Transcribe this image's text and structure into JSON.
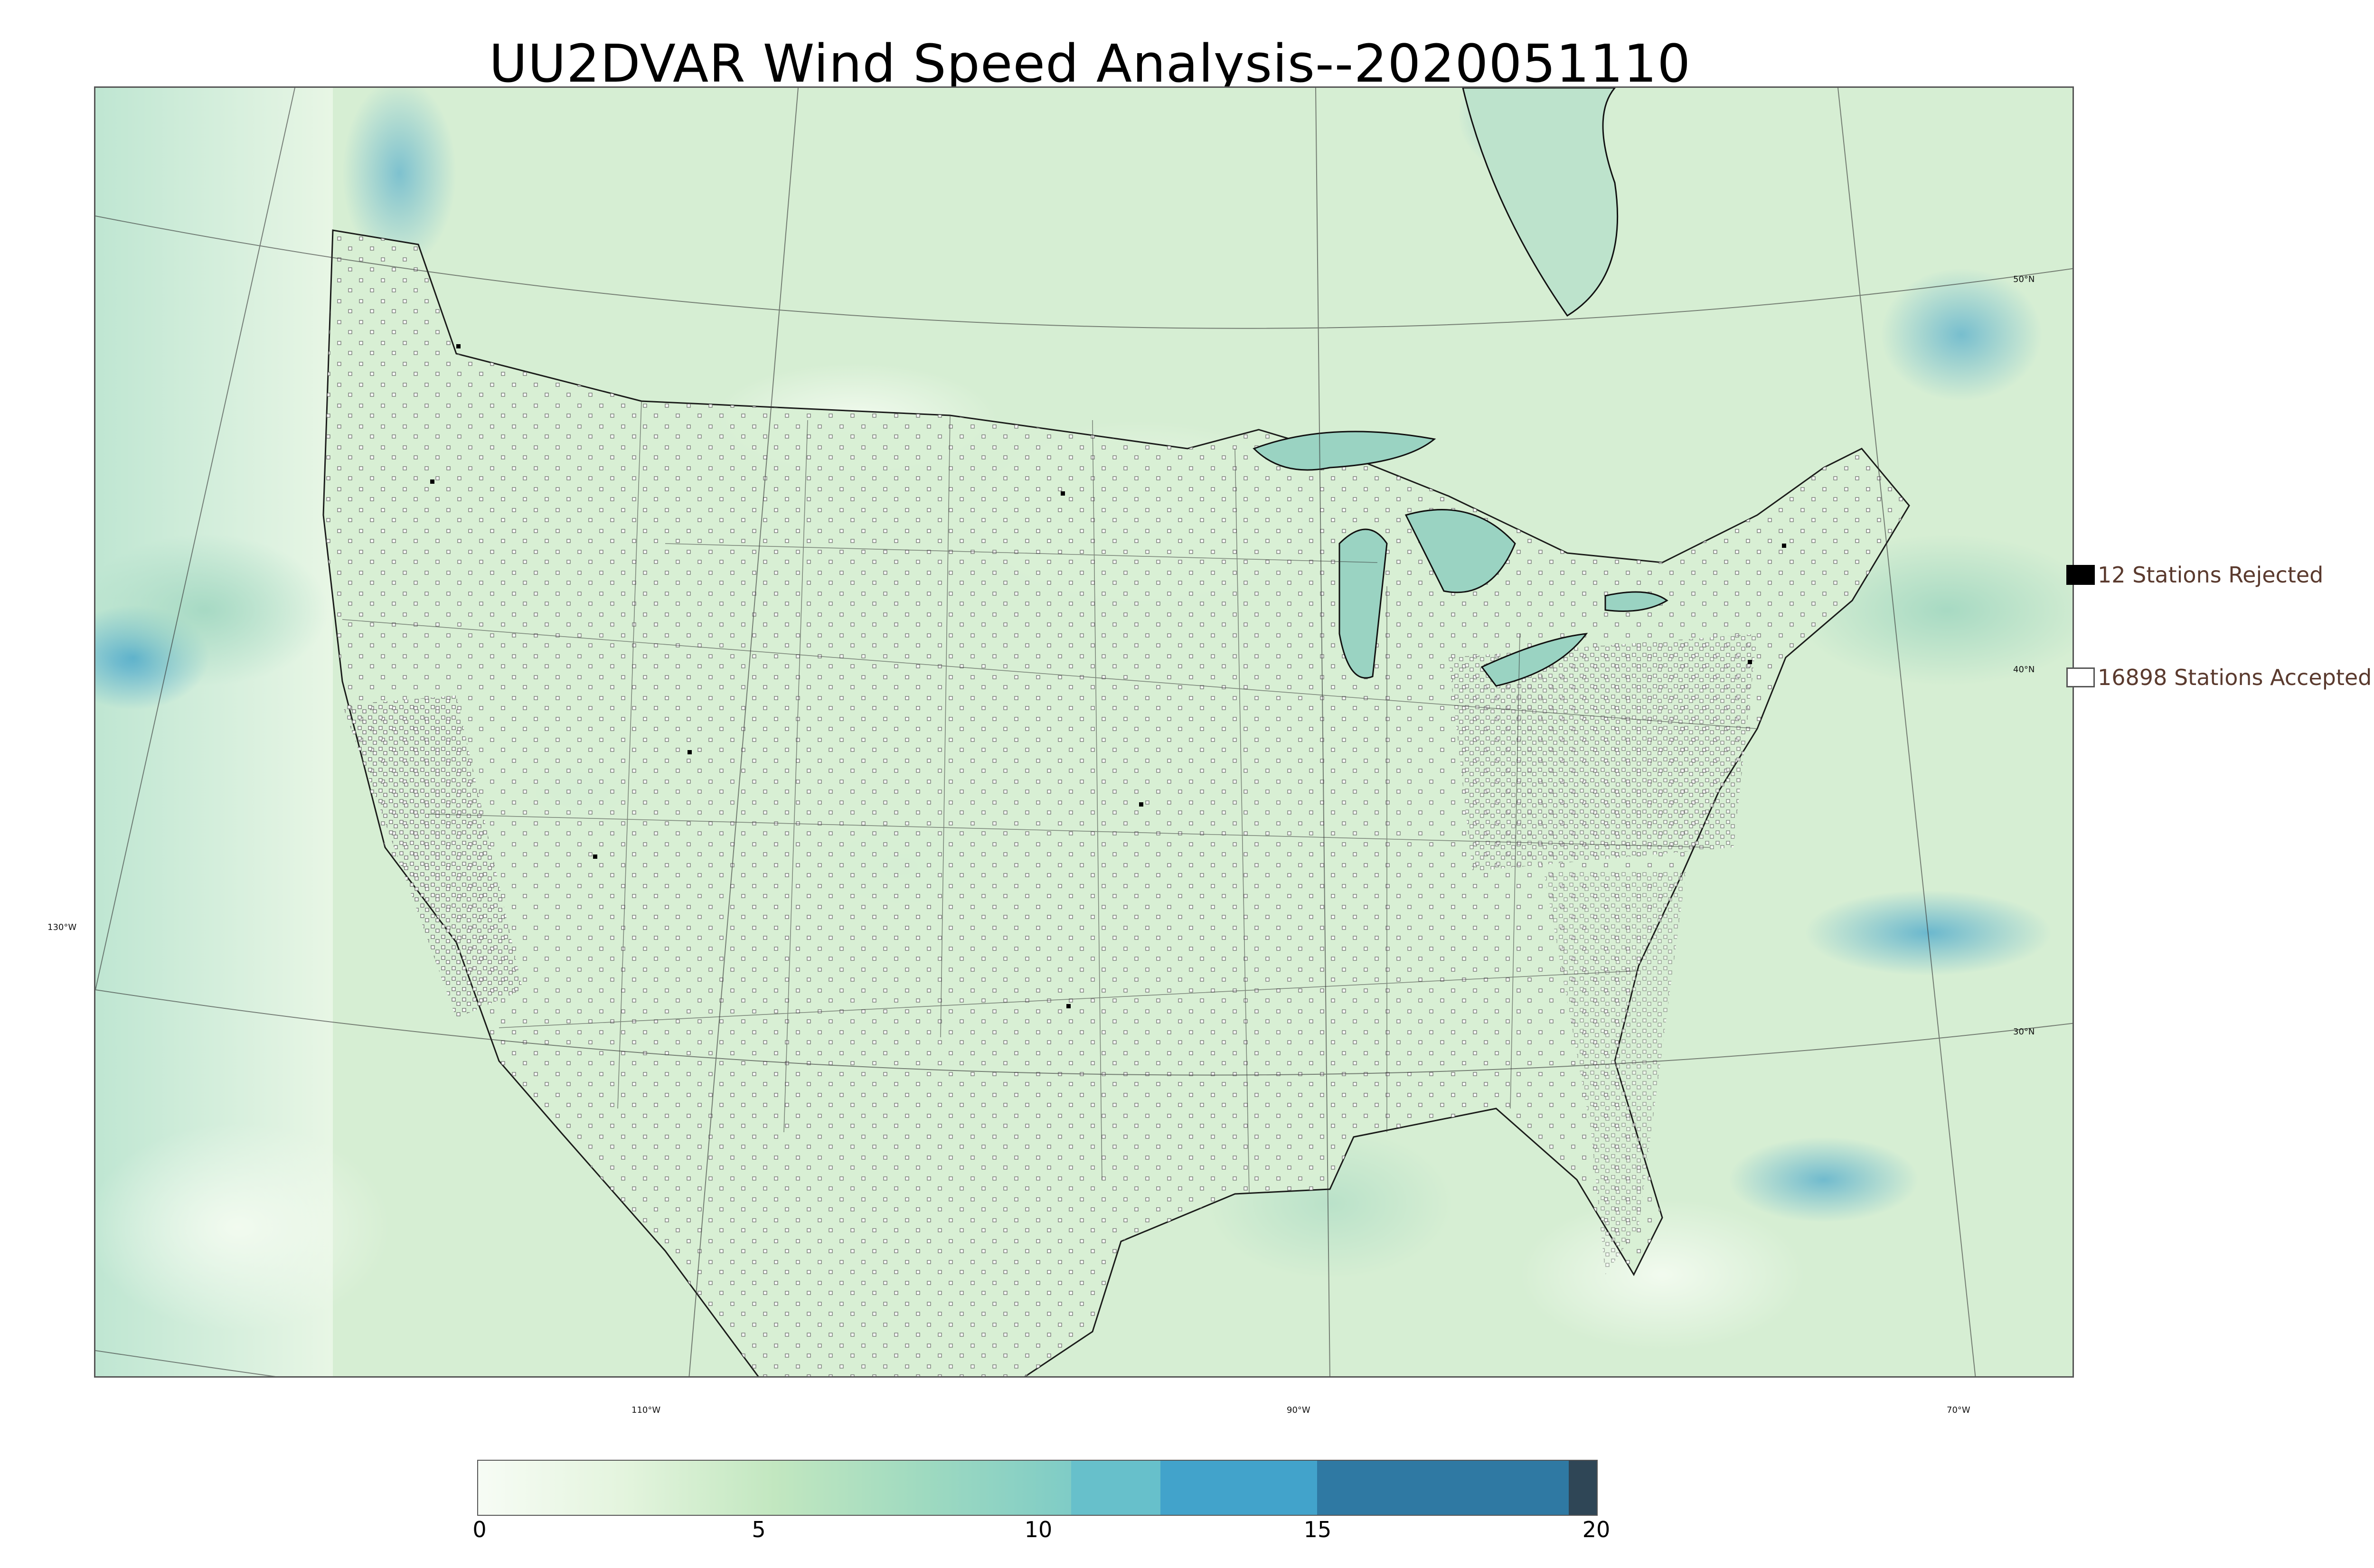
{
  "title": "UU2DVAR Wind Speed Analysis--2020051110",
  "legend": {
    "rejected_label": "12 Stations Rejected",
    "accepted_label": "16898 Stations Accepted"
  },
  "map": {
    "latitude_labels": [
      "50°N",
      "40°N",
      "30°N"
    ],
    "longitude_labels": [
      "130°W",
      "110°W",
      "90°W",
      "70°W"
    ],
    "colors": {
      "land_base": "#d8efd4",
      "ocean_base": "#cbe9cf",
      "high_wind": "#3fa0c8",
      "coastline": "#111111",
      "station_accepted": "#ffffff",
      "station_rejected": "#000000"
    }
  },
  "colorbar": {
    "ticks": [
      "0",
      "5",
      "10",
      "15",
      "20"
    ],
    "segments": [
      {
        "from": 0,
        "to": 10.6,
        "color": "gradient"
      },
      {
        "from": 10.6,
        "to": 12.2,
        "color": "#67c0cb"
      },
      {
        "from": 12.2,
        "to": 15.0,
        "color": "#42a3cb"
      },
      {
        "from": 15.0,
        "to": 19.5,
        "color": "#2f79a3"
      },
      {
        "from": 19.5,
        "to": 20.0,
        "color": "#2f4656"
      }
    ]
  }
}
